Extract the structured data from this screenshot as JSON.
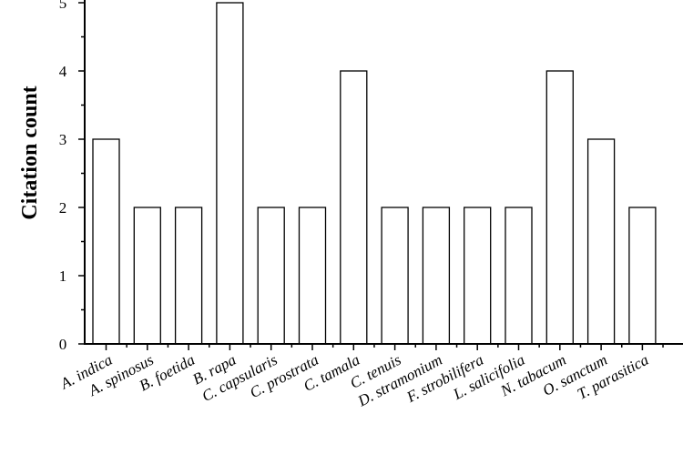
{
  "chart_data": {
    "type": "bar",
    "title": "",
    "xlabel": "",
    "ylabel": "Citation count",
    "ylim": [
      0,
      5
    ],
    "yticks": [
      "0",
      "1",
      "2",
      "3",
      "4",
      "5"
    ],
    "grid": false,
    "categories": [
      "A. indica",
      "A. spinosus",
      "B. foetida",
      "B. rapa",
      "C. capsularis",
      "C. prostrata",
      "C. tamala",
      "C. tenuis",
      "D. stramonium",
      "F. strobilifera",
      "L. salicifolia",
      "N. tabacum",
      "O. sanctum",
      "T. parasitica"
    ],
    "values": [
      3,
      2,
      2,
      5,
      2,
      2,
      4,
      2,
      2,
      2,
      2,
      4,
      3,
      2
    ],
    "bar_fill": "#ffffff",
    "bar_stroke": "#000000"
  }
}
